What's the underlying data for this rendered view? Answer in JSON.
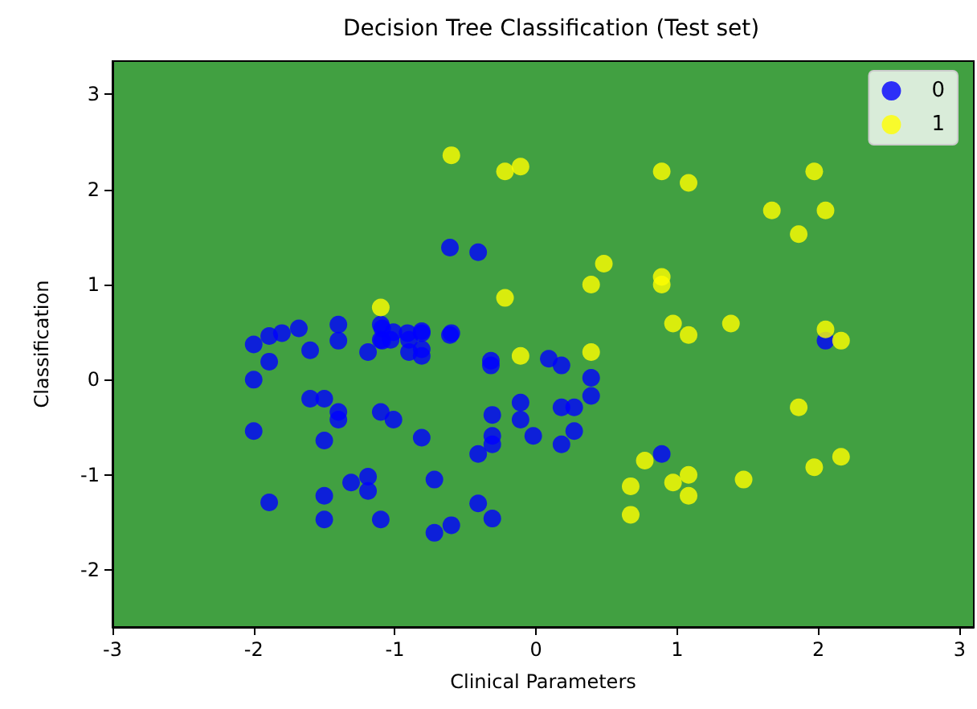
{
  "chart_data": {
    "type": "scatter",
    "title": "Decision Tree Classification (Test set)",
    "xlabel": "Clinical Parameters",
    "ylabel": "Classification",
    "xlim": [
      -3,
      3.1
    ],
    "ylim": [
      -2.6,
      3.35
    ],
    "xticks": [
      -3,
      -2,
      -1,
      0,
      1,
      2,
      3
    ],
    "yticks": [
      -2,
      -1,
      0,
      1,
      2,
      3
    ],
    "grid": false,
    "legend": "top right",
    "marker": "circle",
    "series": [
      {
        "name": "0",
        "color": "#0000ff",
        "x": [
          -0.61,
          -0.41,
          -2,
          -1.89,
          -1.8,
          -1.68,
          -1.4,
          -1.4,
          -1.6,
          -2,
          -1.89,
          -1.09,
          -1.03,
          -0.91,
          -1.09,
          -1.19,
          -0.81,
          -0.81,
          -0.61,
          -0.32,
          -0.32,
          -1.6,
          -1.5,
          -1.4,
          -1.4,
          -2,
          -1.5,
          -1.1,
          -1.01,
          -0.81,
          -0.31,
          -0.31,
          -0.31,
          -0.41,
          -1.31,
          -1.19,
          -1.19,
          -0.72,
          -1.89,
          -1.5,
          -1.5,
          -1.1,
          -0.72,
          -0.6,
          -0.41,
          -0.31,
          -0.11,
          -0.11,
          -0.02,
          -1.1,
          -1.1,
          -1.01,
          -0.9,
          -0.9,
          -0.81,
          -0.81,
          -0.6,
          0.09,
          0.18,
          0.39,
          0.39,
          0.18,
          0.27,
          0.27,
          0.18,
          0.89,
          2.05
        ],
        "values": [
          1.39,
          1.34,
          0.37,
          0.46,
          0.49,
          0.54,
          0.58,
          0.41,
          0.31,
          0,
          0.19,
          0.54,
          0.42,
          0.49,
          0.41,
          0.29,
          0.32,
          0.49,
          0.47,
          0.2,
          0.15,
          -0.2,
          -0.2,
          -0.34,
          -0.42,
          -0.54,
          -0.64,
          -0.34,
          -0.42,
          -0.61,
          -0.37,
          -0.59,
          -0.68,
          -0.78,
          -1.08,
          -1.02,
          -1.17,
          -1.05,
          -1.29,
          -1.22,
          -1.47,
          -1.47,
          -1.61,
          -1.53,
          -1.3,
          -1.46,
          -0.24,
          -0.42,
          -0.59,
          0.58,
          0.42,
          0.5,
          0.42,
          0.29,
          0.51,
          0.25,
          0.49,
          0.22,
          0.15,
          0.02,
          -0.17,
          -0.29,
          -0.29,
          -0.54,
          -0.68,
          -0.78,
          0.41
        ]
      },
      {
        "name": "1",
        "color": "#ffff00",
        "x": [
          -0.6,
          -0.22,
          -0.11,
          -1.1,
          -0.22,
          -0.11,
          0.89,
          1.08,
          1.97,
          1.67,
          2.05,
          1.86,
          0.48,
          0.39,
          0.89,
          0.89,
          0.97,
          1.08,
          1.38,
          2.05,
          2.16,
          0.39,
          1.86,
          2.16,
          1.97,
          0.77,
          0.67,
          0.97,
          1.08,
          1.08,
          1.47,
          0.67
        ],
        "values": [
          2.36,
          2.19,
          2.24,
          0.76,
          0.86,
          0.25,
          2.19,
          2.07,
          2.19,
          1.78,
          1.78,
          1.53,
          1.22,
          1,
          1.08,
          1,
          0.59,
          0.47,
          0.59,
          0.53,
          0.41,
          0.29,
          -0.29,
          -0.81,
          -0.92,
          -0.85,
          -1.12,
          -1.08,
          -1,
          -1.22,
          -1.05,
          -1.42
        ]
      }
    ]
  }
}
